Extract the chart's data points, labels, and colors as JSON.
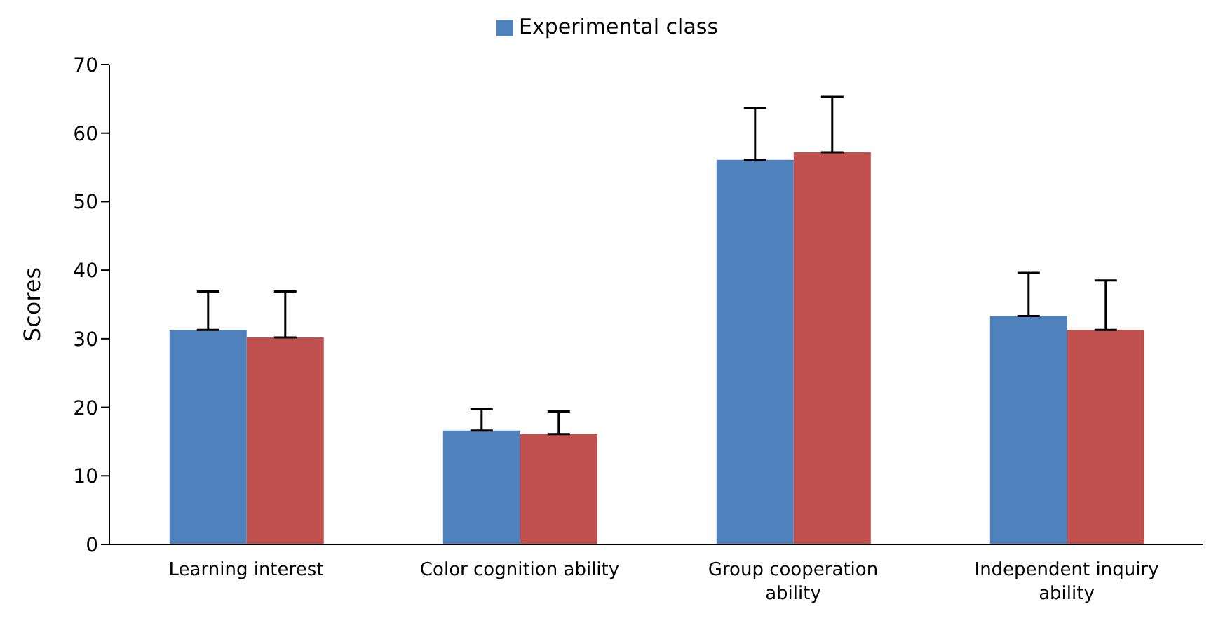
{
  "chart_data": {
    "type": "bar",
    "ylabel": "Scores",
    "categories": [
      "Learning interest",
      "Color cognition ability",
      "Group cooperation ability",
      "Independent inquiry ability"
    ],
    "series": [
      {
        "name": "Experimental class",
        "color": "#4f81bd",
        "values": [
          31.3,
          16.6,
          56.1,
          33.3
        ],
        "errors": [
          [
            31.3,
            36.9
          ],
          [
            16.6,
            19.7
          ],
          [
            56.1,
            63.7
          ],
          [
            33.3,
            39.6
          ]
        ]
      },
      {
        "color": "#c0504d",
        "values": [
          30.2,
          16.1,
          57.2,
          31.3
        ],
        "errors": [
          [
            30.2,
            36.9
          ],
          [
            16.1,
            19.4
          ],
          [
            57.2,
            65.3
          ],
          [
            31.3,
            38.5
          ]
        ]
      }
    ],
    "ylim": [
      0,
      70
    ],
    "yticks": [
      0,
      10,
      20,
      30,
      40,
      50,
      60,
      70
    ],
    "grid": false,
    "legend": "top"
  }
}
